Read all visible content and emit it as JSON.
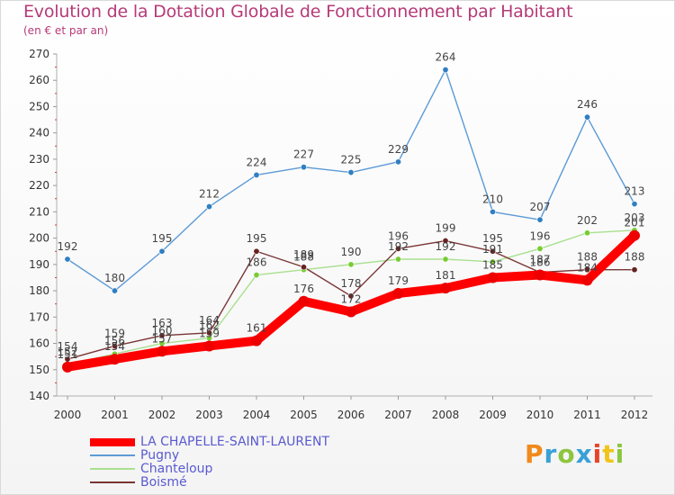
{
  "title": "Evolution de la Dotation Globale de Fonctionnement par Habitant",
  "subtitle": "(en € et par an)",
  "brand": {
    "text": "Proxiti",
    "colors": [
      "#f08a1c",
      "#3aa0d8",
      "#8cc63f",
      "#3aa0d8",
      "#e8442a",
      "#f0c419",
      "#8cc63f"
    ]
  },
  "chart_data": {
    "type": "line",
    "x": [
      "2000",
      "2001",
      "2002",
      "2003",
      "2004",
      "2005",
      "2006",
      "2007",
      "2008",
      "2009",
      "2010",
      "2011",
      "2012"
    ],
    "ylim": [
      140,
      270
    ],
    "yticks": [
      140,
      150,
      160,
      170,
      180,
      190,
      200,
      210,
      220,
      230,
      240,
      250,
      260,
      270
    ],
    "grid": false,
    "legend_position": "bottom",
    "series": [
      {
        "name": "Pugny",
        "color": "#5c9ad6",
        "marker": "#2f7fc2",
        "values": [
          192,
          180,
          195,
          212,
          224,
          227,
          225,
          229,
          264,
          210,
          207,
          246,
          213
        ]
      },
      {
        "name": "Chanteloup",
        "color": "#a9e08f",
        "marker": "#77cc33",
        "values": [
          152,
          156,
          160,
          162,
          186,
          188,
          190,
          192,
          192,
          191,
          196,
          202,
          203
        ]
      },
      {
        "name": "Boismé",
        "color": "#7a3535",
        "marker": "#662222",
        "values": [
          154,
          159,
          163,
          164,
          195,
          189,
          178,
          196,
          199,
          195,
          187,
          188,
          188
        ]
      },
      {
        "name": "LA CHAPELLE-SAINT-LAURENT",
        "color": "#ff0000",
        "marker": "#ee0000",
        "values": [
          151,
          154,
          157,
          159,
          161,
          176,
          172,
          179,
          181,
          185,
          186,
          184,
          201
        ]
      }
    ]
  }
}
